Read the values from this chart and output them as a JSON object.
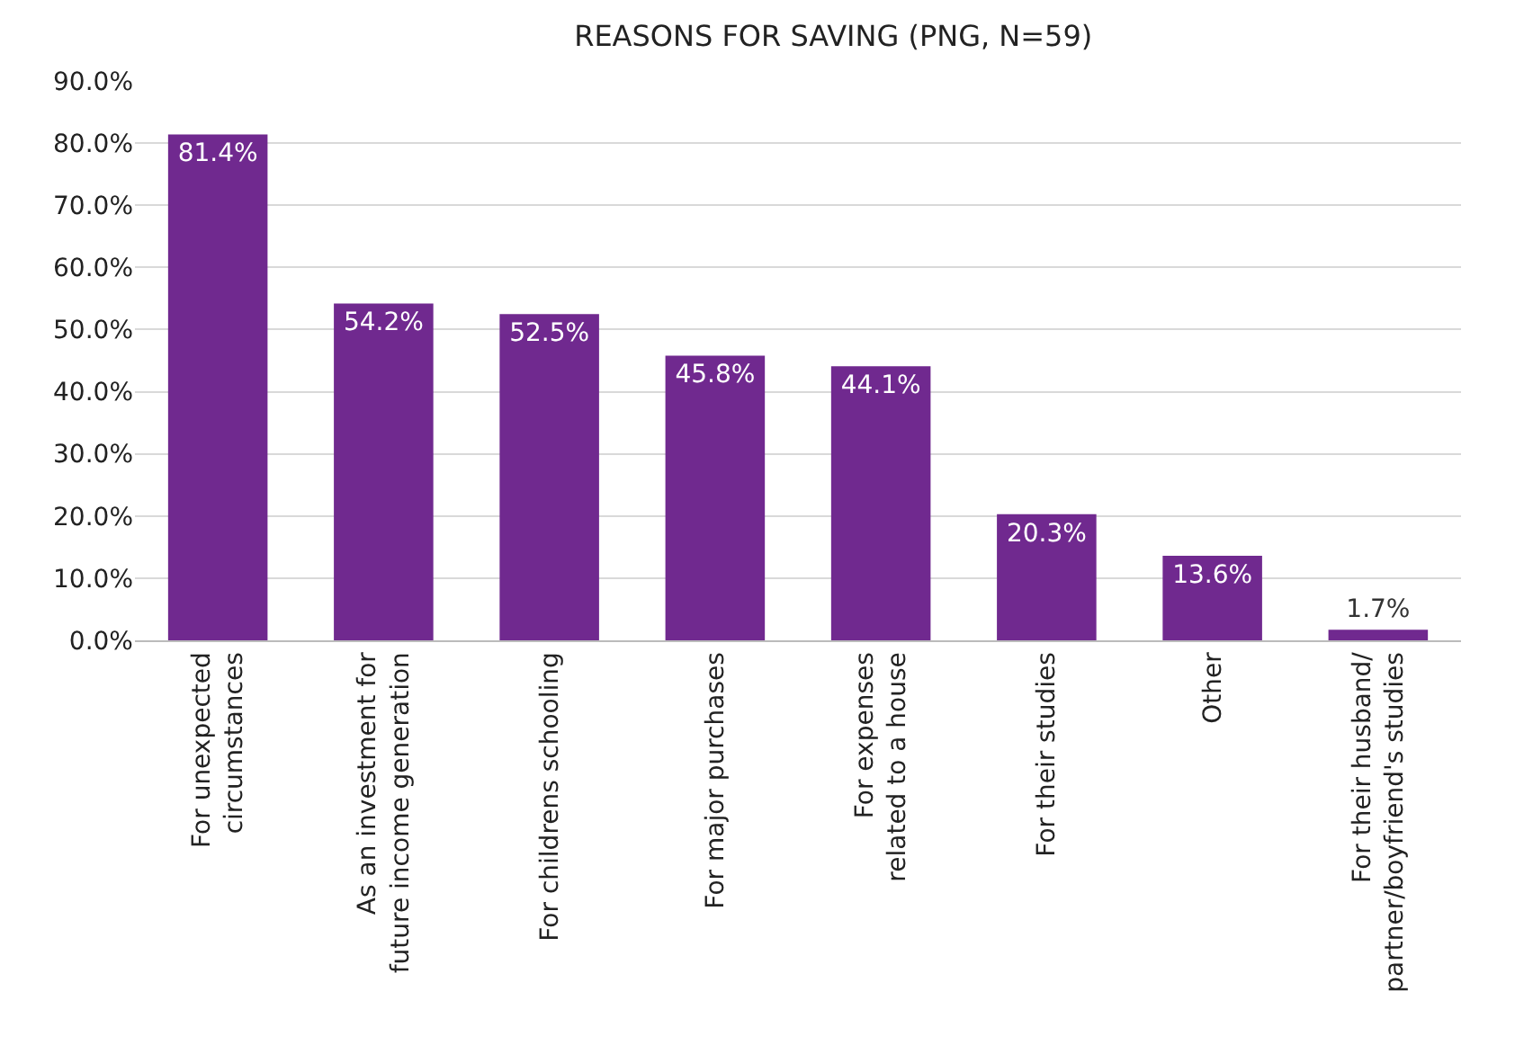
{
  "chart_data": {
    "type": "bar",
    "title": "REASONS FOR SAVING (PNG, N=59)",
    "categories": [
      "For unexpected\ncircumstances",
      "As an investment for\nfuture income generation",
      "For childrens schooling",
      "For major purchases",
      "For expenses\nrelated to a house",
      "For their studies",
      "Other",
      "For their husband/\npartner/boyfriend's studies"
    ],
    "values": [
      81.4,
      54.2,
      52.5,
      45.8,
      44.1,
      20.3,
      13.6,
      1.7
    ],
    "value_labels": [
      "81.4%",
      "54.2%",
      "52.5%",
      "45.8%",
      "44.1%",
      "20.3%",
      "13.6%",
      "1.7%"
    ],
    "color": "#70298f",
    "ylim": [
      0,
      90
    ],
    "yticks": [
      {
        "value": 0,
        "label": "0.0%"
      },
      {
        "value": 10,
        "label": "10.0%"
      },
      {
        "value": 20,
        "label": "20.0%"
      },
      {
        "value": 30,
        "label": "30.0%"
      },
      {
        "value": 40,
        "label": "40.0%"
      },
      {
        "value": 50,
        "label": "50.0%"
      },
      {
        "value": 60,
        "label": "60.0%"
      },
      {
        "value": 70,
        "label": "70.0%"
      },
      {
        "value": 80,
        "label": "80.0%"
      },
      {
        "value": 90,
        "label": "90.0%"
      }
    ],
    "grid": "y"
  }
}
